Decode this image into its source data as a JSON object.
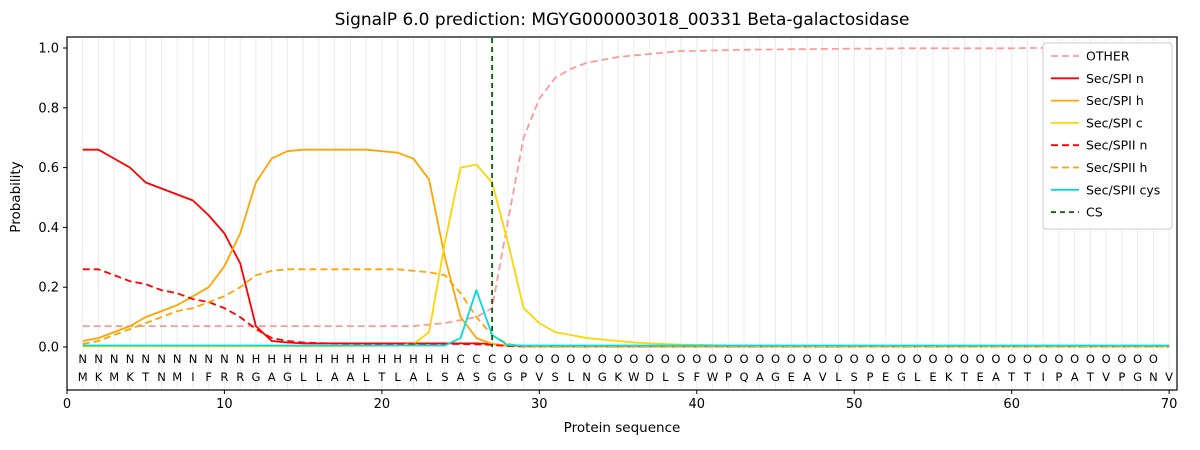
{
  "chart_data": {
    "type": "line",
    "title": "SignalP 6.0 prediction: MGYG000003018_00331 Beta-galactosidase",
    "xlabel": "Protein sequence",
    "ylabel": "Probability",
    "xlim": [
      0,
      70.5
    ],
    "ylim": [
      0,
      1.05
    ],
    "x_ticks": [
      0,
      10,
      20,
      30,
      40,
      50,
      60,
      70
    ],
    "y_ticks": [
      0.0,
      0.2,
      0.4,
      0.6,
      0.8,
      1.0
    ],
    "grid": "vertical-per-residue",
    "legend_position": "upper right",
    "colors": {
      "grid": "#ebebeb",
      "axis": "#000000",
      "legend_border": "#cccccc",
      "sequence_text": "#111111"
    },
    "series": [
      {
        "name": "OTHER",
        "color": "#ff9999",
        "dash": [
          7,
          4
        ],
        "values": [
          0.07,
          0.07,
          0.07,
          0.07,
          0.07,
          0.07,
          0.07,
          0.07,
          0.07,
          0.07,
          0.07,
          0.07,
          0.07,
          0.07,
          0.07,
          0.07,
          0.07,
          0.07,
          0.07,
          0.07,
          0.07,
          0.07,
          0.075,
          0.08,
          0.09,
          0.1,
          0.13,
          0.42,
          0.7,
          0.83,
          0.9,
          0.93,
          0.95,
          0.96,
          0.97,
          0.975,
          0.98,
          0.985,
          0.99,
          0.99,
          0.992,
          0.993,
          0.994,
          0.995,
          0.995,
          0.996,
          0.996,
          0.997,
          0.997,
          0.998,
          0.998,
          0.998,
          0.999,
          0.999,
          0.999,
          0.999,
          0.999,
          0.999,
          0.999,
          0.999,
          1.0,
          1.0,
          1.0,
          1.0,
          1.0,
          1.0,
          1.0,
          1.0,
          1.0,
          1.0
        ]
      },
      {
        "name": "Sec/SPI n",
        "color": "#ff0000",
        "dash": null,
        "values": [
          0.66,
          0.66,
          0.63,
          0.6,
          0.55,
          0.53,
          0.51,
          0.49,
          0.44,
          0.38,
          0.28,
          0.07,
          0.02,
          0.015,
          0.012,
          0.012,
          0.012,
          0.012,
          0.012,
          0.012,
          0.012,
          0.012,
          0.012,
          0.012,
          0.012,
          0.012,
          0.01,
          0.004,
          0.002,
          0.002,
          0.002,
          0.002,
          0.002,
          0.002,
          0.002,
          0.002,
          0.002,
          0.002,
          0.002,
          0.002,
          0.002,
          0.002,
          0.002,
          0.002,
          0.002,
          0.002,
          0.002,
          0.002,
          0.002,
          0.002,
          0.002,
          0.002,
          0.002,
          0.002,
          0.002,
          0.002,
          0.002,
          0.002,
          0.002,
          0.002,
          0.002,
          0.002,
          0.002,
          0.002,
          0.002,
          0.002,
          0.002,
          0.002,
          0.002,
          0.002
        ]
      },
      {
        "name": "Sec/SPI h",
        "color": "#ffa500",
        "dash": null,
        "values": [
          0.02,
          0.03,
          0.05,
          0.07,
          0.1,
          0.12,
          0.14,
          0.17,
          0.2,
          0.27,
          0.38,
          0.55,
          0.63,
          0.655,
          0.66,
          0.66,
          0.66,
          0.66,
          0.66,
          0.655,
          0.65,
          0.63,
          0.56,
          0.3,
          0.1,
          0.03,
          0.01,
          0.004,
          0.002,
          0.002,
          0.002,
          0.002,
          0.002,
          0.002,
          0.002,
          0.002,
          0.002,
          0.002,
          0.002,
          0.002,
          0.002,
          0.002,
          0.002,
          0.002,
          0.002,
          0.002,
          0.002,
          0.002,
          0.002,
          0.002,
          0.002,
          0.002,
          0.002,
          0.002,
          0.002,
          0.002,
          0.002,
          0.002,
          0.002,
          0.002,
          0.002,
          0.002,
          0.002,
          0.002,
          0.002,
          0.002,
          0.002,
          0.002,
          0.002,
          0.002
        ]
      },
      {
        "name": "Sec/SPI c",
        "color": "#ffd500",
        "dash": null,
        "values": [
          0.002,
          0.002,
          0.002,
          0.002,
          0.002,
          0.002,
          0.002,
          0.002,
          0.002,
          0.002,
          0.002,
          0.002,
          0.003,
          0.003,
          0.003,
          0.003,
          0.003,
          0.004,
          0.004,
          0.005,
          0.006,
          0.01,
          0.05,
          0.35,
          0.6,
          0.61,
          0.55,
          0.35,
          0.13,
          0.08,
          0.05,
          0.04,
          0.03,
          0.025,
          0.02,
          0.015,
          0.012,
          0.01,
          0.008,
          0.007,
          0.006,
          0.005,
          0.005,
          0.004,
          0.004,
          0.003,
          0.003,
          0.003,
          0.003,
          0.002,
          0.002,
          0.002,
          0.002,
          0.002,
          0.002,
          0.002,
          0.002,
          0.002,
          0.002,
          0.002,
          0.002,
          0.002,
          0.002,
          0.002,
          0.002,
          0.002,
          0.002,
          0.002,
          0.002,
          0.002
        ]
      },
      {
        "name": "Sec/SPII n",
        "color": "#ff0000",
        "dash": [
          7,
          4
        ],
        "values": [
          0.26,
          0.26,
          0.24,
          0.22,
          0.21,
          0.19,
          0.18,
          0.16,
          0.15,
          0.13,
          0.1,
          0.06,
          0.03,
          0.02,
          0.015,
          0.013,
          0.012,
          0.011,
          0.01,
          0.01,
          0.01,
          0.01,
          0.01,
          0.01,
          0.01,
          0.009,
          0.007,
          0.003,
          0.002,
          0.002,
          0.002,
          0.002,
          0.002,
          0.002,
          0.002,
          0.002,
          0.002,
          0.002,
          0.002,
          0.002,
          0.002,
          0.002,
          0.002,
          0.002,
          0.002,
          0.002,
          0.002,
          0.002,
          0.002,
          0.002,
          0.002,
          0.002,
          0.002,
          0.002,
          0.002,
          0.002,
          0.002,
          0.002,
          0.002,
          0.002,
          0.002,
          0.002,
          0.002,
          0.002,
          0.002,
          0.002,
          0.002,
          0.002,
          0.002,
          0.002
        ]
      },
      {
        "name": "Sec/SPII h",
        "color": "#ffa500",
        "dash": [
          7,
          4
        ],
        "values": [
          0.01,
          0.02,
          0.04,
          0.06,
          0.08,
          0.1,
          0.12,
          0.13,
          0.15,
          0.17,
          0.2,
          0.24,
          0.255,
          0.26,
          0.26,
          0.26,
          0.26,
          0.26,
          0.26,
          0.26,
          0.26,
          0.255,
          0.25,
          0.24,
          0.18,
          0.1,
          0.04,
          0.01,
          0.003,
          0.002,
          0.002,
          0.002,
          0.002,
          0.002,
          0.002,
          0.002,
          0.002,
          0.002,
          0.002,
          0.002,
          0.002,
          0.002,
          0.002,
          0.002,
          0.002,
          0.002,
          0.002,
          0.002,
          0.002,
          0.002,
          0.002,
          0.002,
          0.002,
          0.002,
          0.002,
          0.002,
          0.002,
          0.002,
          0.002,
          0.002,
          0.002,
          0.002,
          0.002,
          0.002,
          0.002,
          0.002,
          0.002,
          0.002,
          0.002,
          0.002
        ]
      },
      {
        "name": "Sec/SPII cys",
        "color": "#00dcdc",
        "dash": null,
        "values": [
          0.005,
          0.005,
          0.005,
          0.005,
          0.005,
          0.005,
          0.005,
          0.005,
          0.005,
          0.005,
          0.005,
          0.005,
          0.005,
          0.005,
          0.005,
          0.005,
          0.005,
          0.005,
          0.005,
          0.005,
          0.005,
          0.005,
          0.005,
          0.005,
          0.03,
          0.19,
          0.04,
          0.006,
          0.005,
          0.005,
          0.005,
          0.005,
          0.005,
          0.005,
          0.005,
          0.005,
          0.005,
          0.005,
          0.005,
          0.005,
          0.005,
          0.005,
          0.005,
          0.005,
          0.005,
          0.005,
          0.005,
          0.005,
          0.005,
          0.005,
          0.005,
          0.005,
          0.005,
          0.005,
          0.005,
          0.005,
          0.005,
          0.005,
          0.005,
          0.005,
          0.005,
          0.005,
          0.005,
          0.005,
          0.005,
          0.005,
          0.005,
          0.005,
          0.005,
          0.005
        ]
      }
    ],
    "cs_line": {
      "name": "CS",
      "position": 27,
      "color": "#006400",
      "dash": [
        5,
        4
      ]
    },
    "sequence": "MKMKTNMIFRRGAGLLAALTLALSASGGPVSLNGKWDLSFWPQAGEAVLSPEGLEKTEATTIPATVPGNV",
    "region_labels": "NNNNNNNNNNNHHHHHHHHHHHHHCCCOOOOOOOOOOOOOOOOOOOOOOOOOOOOOOOOOOOOOOOOOO",
    "region_colors": {
      "N": "#ff2222",
      "H": "#ffa500",
      "C": "#ffc800",
      "O": "#9a9a9a"
    }
  }
}
